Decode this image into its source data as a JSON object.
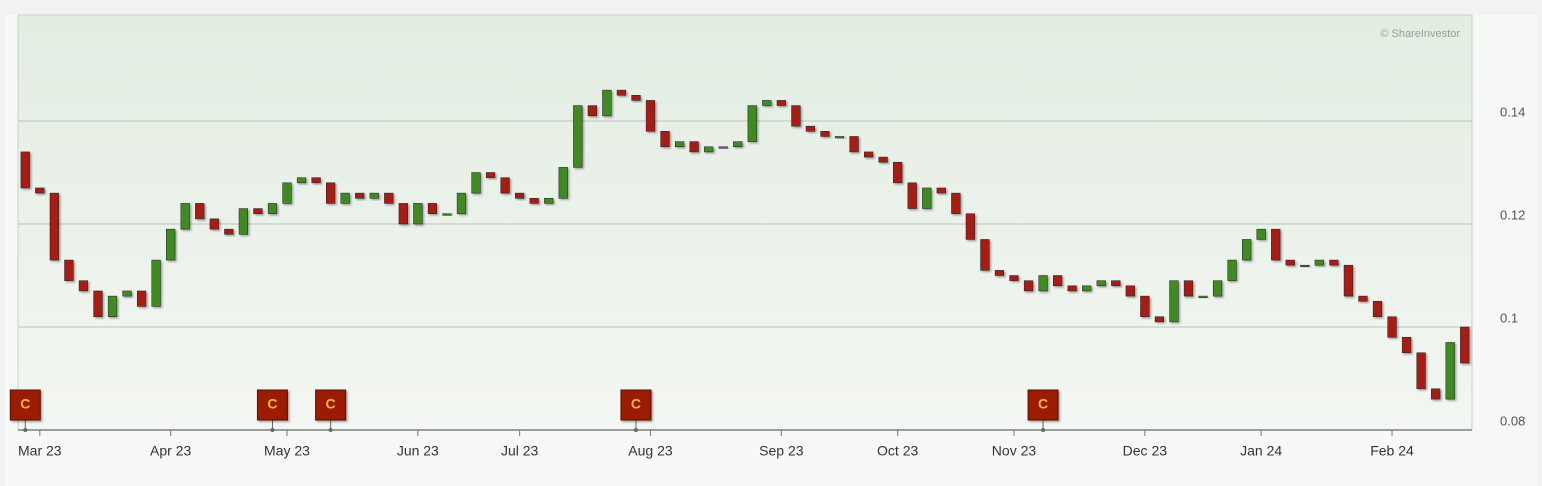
{
  "chart_data": {
    "type": "candlestick",
    "watermark": "© ShareInvestor",
    "categories": [
      null,
      "Mar 23",
      null,
      null,
      null,
      null,
      null,
      null,
      null,
      null,
      "Apr 23",
      null,
      null,
      null,
      null,
      null,
      null,
      null,
      "May 23",
      null,
      null,
      null,
      null,
      null,
      null,
      null,
      null,
      "Jun 23",
      null,
      null,
      null,
      null,
      null,
      null,
      "Jul 23",
      null,
      null,
      null,
      null,
      null,
      null,
      null,
      null,
      "Aug 23",
      null,
      null,
      null,
      null,
      null,
      null,
      null,
      null,
      "Sep 23",
      null,
      null,
      null,
      null,
      null,
      null,
      null,
      "Oct 23",
      null,
      null,
      null,
      null,
      null,
      null,
      null,
      "Nov 23",
      null,
      null,
      null,
      null,
      null,
      null,
      null,
      null,
      "Dec 23",
      null,
      null,
      null,
      null,
      null,
      null,
      null,
      "Jan 24",
      null,
      null,
      null,
      null,
      null,
      null,
      null,
      null,
      "Feb 24",
      null,
      null,
      null,
      null,
      null
    ],
    "open": [
      0.134,
      0.127,
      0.126,
      0.113,
      0.109,
      0.107,
      0.102,
      0.106,
      0.107,
      0.104,
      0.113,
      0.119,
      0.124,
      0.121,
      0.119,
      0.118,
      0.123,
      0.122,
      0.124,
      0.128,
      0.129,
      0.128,
      0.124,
      0.126,
      0.125,
      0.126,
      0.124,
      0.12,
      0.124,
      0.122,
      0.122,
      0.126,
      0.13,
      0.129,
      0.126,
      0.125,
      0.124,
      0.125,
      0.131,
      0.143,
      0.141,
      0.146,
      0.145,
      0.144,
      0.138,
      0.135,
      0.136,
      0.134,
      0.135,
      0.135,
      0.136,
      0.143,
      0.144,
      0.143,
      0.139,
      0.138,
      0.137,
      0.137,
      0.134,
      0.133,
      0.132,
      0.128,
      0.123,
      0.127,
      0.126,
      0.122,
      0.117,
      0.111,
      0.11,
      0.109,
      0.107,
      0.11,
      0.108,
      0.107,
      0.108,
      0.109,
      0.108,
      0.106,
      0.102,
      0.101,
      0.109,
      0.106,
      0.106,
      0.109,
      0.113,
      0.117,
      0.119,
      0.113,
      0.112,
      0.112,
      0.113,
      0.112,
      0.106,
      0.105,
      0.102,
      0.098,
      0.095,
      0.088,
      0.086,
      0.1
    ],
    "high": [
      0.136,
      0.129,
      0.127,
      0.114,
      0.11,
      0.108,
      0.107,
      0.109,
      0.109,
      0.114,
      0.12,
      0.126,
      0.125,
      0.122,
      0.12,
      0.124,
      0.124,
      0.125,
      0.13,
      0.132,
      0.13,
      0.129,
      0.127,
      0.127,
      0.128,
      0.127,
      0.125,
      0.125,
      0.125,
      0.123,
      0.127,
      0.132,
      0.131,
      0.13,
      0.127,
      0.126,
      0.126,
      0.132,
      0.145,
      0.144,
      0.147,
      0.147,
      0.146,
      0.145,
      0.139,
      0.138,
      0.137,
      0.136,
      0.137,
      0.137,
      0.145,
      0.146,
      0.147,
      0.144,
      0.14,
      0.139,
      0.139,
      0.138,
      0.135,
      0.135,
      0.133,
      0.129,
      0.128,
      0.128,
      0.127,
      0.123,
      0.118,
      0.112,
      0.111,
      0.11,
      0.111,
      0.111,
      0.109,
      0.109,
      0.11,
      0.11,
      0.109,
      0.107,
      0.103,
      0.11,
      0.11,
      0.107,
      0.11,
      0.114,
      0.118,
      0.12,
      0.12,
      0.114,
      0.113,
      0.115,
      0.116,
      0.113,
      0.107,
      0.106,
      0.103,
      0.099,
      0.096,
      0.089,
      0.099,
      0.101
    ],
    "low": [
      0.12,
      0.117,
      0.111,
      0.107,
      0.105,
      0.1,
      0.101,
      0.104,
      0.102,
      0.103,
      0.112,
      0.118,
      0.12,
      0.117,
      0.116,
      0.117,
      0.12,
      0.119,
      0.123,
      0.127,
      0.126,
      0.122,
      0.123,
      0.123,
      0.124,
      0.122,
      0.117,
      0.119,
      0.121,
      0.121,
      0.121,
      0.125,
      0.127,
      0.124,
      0.123,
      0.123,
      0.123,
      0.124,
      0.13,
      0.139,
      0.14,
      0.144,
      0.14,
      0.136,
      0.133,
      0.134,
      0.132,
      0.133,
      0.134,
      0.134,
      0.135,
      0.142,
      0.141,
      0.138,
      0.137,
      0.136,
      0.135,
      0.133,
      0.131,
      0.13,
      0.127,
      0.122,
      0.122,
      0.124,
      0.12,
      0.115,
      0.109,
      0.108,
      0.107,
      0.105,
      0.106,
      0.106,
      0.106,
      0.106,
      0.107,
      0.107,
      0.104,
      0.101,
      0.1,
      0.1,
      0.104,
      0.104,
      0.105,
      0.108,
      0.112,
      0.116,
      0.112,
      0.111,
      0.11,
      0.111,
      0.111,
      0.105,
      0.103,
      0.1,
      0.097,
      0.094,
      0.087,
      0.085,
      0.085,
      0.092
    ],
    "close": [
      0.127,
      0.126,
      0.113,
      0.109,
      0.107,
      0.102,
      0.106,
      0.107,
      0.104,
      0.113,
      0.119,
      0.124,
      0.121,
      0.119,
      0.118,
      0.123,
      0.122,
      0.124,
      0.128,
      0.129,
      0.128,
      0.124,
      0.126,
      0.125,
      0.126,
      0.124,
      0.12,
      0.124,
      0.122,
      0.122,
      0.126,
      0.13,
      0.129,
      0.126,
      0.125,
      0.124,
      0.125,
      0.131,
      0.143,
      0.141,
      0.146,
      0.145,
      0.144,
      0.138,
      0.135,
      0.136,
      0.134,
      0.135,
      0.135,
      0.136,
      0.143,
      0.144,
      0.143,
      0.139,
      0.138,
      0.137,
      0.137,
      0.134,
      0.133,
      0.132,
      0.128,
      0.123,
      0.127,
      0.126,
      0.122,
      0.117,
      0.111,
      0.11,
      0.109,
      0.107,
      0.11,
      0.108,
      0.107,
      0.108,
      0.109,
      0.108,
      0.106,
      0.102,
      0.101,
      0.109,
      0.106,
      0.106,
      0.109,
      0.113,
      0.117,
      0.119,
      0.113,
      0.112,
      0.112,
      0.113,
      0.112,
      0.106,
      0.105,
      0.102,
      0.098,
      0.095,
      0.088,
      0.086,
      0.097,
      0.093
    ],
    "up_color": "#3f8a22",
    "down_color": "#a81b16",
    "markers": [
      {
        "index": 0,
        "label": "C"
      },
      {
        "index": 17,
        "label": "C"
      },
      {
        "index": 21,
        "label": "C"
      },
      {
        "index": 42,
        "label": "C"
      },
      {
        "index": 70,
        "label": "C"
      }
    ],
    "ylim": [
      0.08,
      0.16
    ],
    "yticks": [
      0.08,
      0.1,
      0.12,
      0.14
    ],
    "grid": true
  }
}
